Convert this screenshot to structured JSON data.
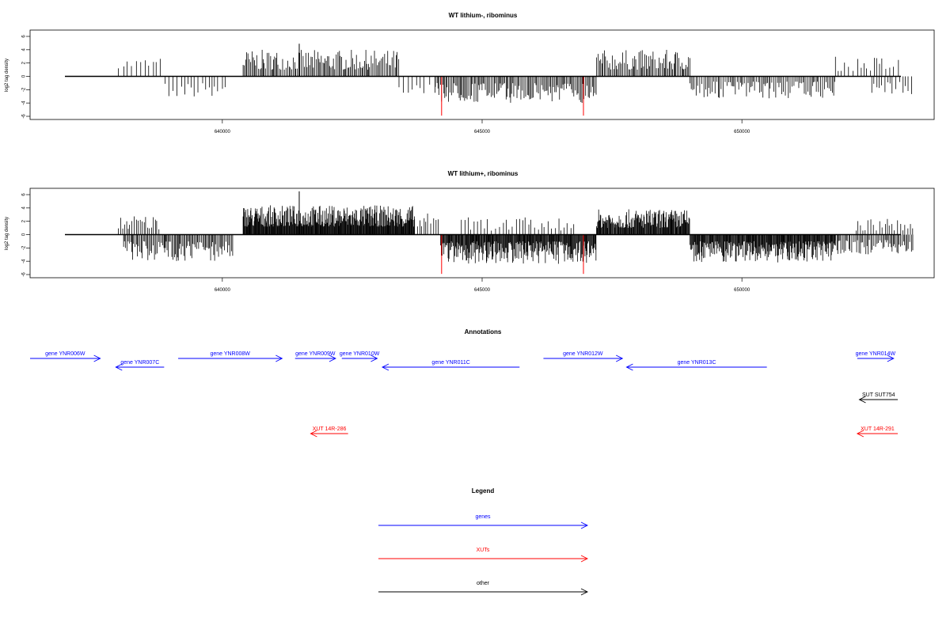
{
  "chart_data": [
    {
      "type": "bar",
      "title": "WT lithium-, ribominus",
      "ylabel": "log2 tag density",
      "xlabel": "",
      "ylim": [
        -6,
        7
      ],
      "xlim": [
        636300,
        653700
      ],
      "yticks": [
        6,
        4,
        2,
        0,
        -2,
        -4,
        -6
      ],
      "xticks": [
        640000,
        645000,
        650000
      ],
      "xtick_labels": [
        "640000",
        "645000",
        "650000"
      ],
      "series": [
        {
          "segments": [
            {
              "from": 638000,
              "to": 638900,
              "sign": 1,
              "step": 80,
              "base": 1.2,
              "amp": 1.6
            },
            {
              "from": 638900,
              "to": 640100,
              "sign": -1,
              "step": 70,
              "base": 1.0,
              "amp": 2.2
            },
            {
              "from": 640400,
              "to": 643400,
              "sign": 1,
              "step": 25,
              "base": 1.0,
              "amp": 3.0
            },
            {
              "from": 643400,
              "to": 644100,
              "sign": -1,
              "step": 90,
              "base": 0.8,
              "amp": 2.0
            },
            {
              "from": 644100,
              "to": 647200,
              "sign": -1,
              "step": 25,
              "base": 1.0,
              "amp": 3.0
            },
            {
              "from": 647200,
              "to": 649000,
              "sign": 1,
              "step": 25,
              "base": 1.0,
              "amp": 3.0
            },
            {
              "from": 649000,
              "to": 651800,
              "sign": -1,
              "step": 30,
              "base": 0.8,
              "amp": 2.6
            },
            {
              "from": 651800,
              "to": 653100,
              "sign": 1,
              "step": 70,
              "base": 0.8,
              "amp": 2.2
            },
            {
              "from": 652500,
              "to": 653300,
              "sign": -1,
              "step": 60,
              "base": 0.8,
              "amp": 2.0
            }
          ],
          "highlights": [
            {
              "x": 644220,
              "value": -5.9,
              "color": "#ff0000"
            },
            {
              "x": 646950,
              "value": -5.9,
              "color": "#ff0000"
            },
            {
              "x": 641480,
              "value": 4.9,
              "color": "#000000"
            }
          ]
        }
      ]
    },
    {
      "type": "bar",
      "title": "WT lithium+, ribominus",
      "ylabel": "log2 tag density",
      "xlabel": "",
      "ylim": [
        -6,
        7
      ],
      "xlim": [
        636300,
        653700
      ],
      "yticks": [
        6,
        4,
        2,
        0,
        -2,
        -4,
        -6
      ],
      "xticks": [
        640000,
        645000,
        650000
      ],
      "xtick_labels": [
        "640000",
        "645000",
        "650000"
      ],
      "series": [
        {
          "segments": [
            {
              "from": 638000,
              "to": 638800,
              "sign": 1,
              "step": 35,
              "base": 0.8,
              "amp": 2.2
            },
            {
              "from": 638100,
              "to": 640200,
              "sign": -1,
              "step": 22,
              "base": 1.0,
              "amp": 3.0
            },
            {
              "from": 640400,
              "to": 643700,
              "sign": 1,
              "step": 10,
              "base": 1.2,
              "amp": 3.2
            },
            {
              "from": 643700,
              "to": 644200,
              "sign": 1,
              "step": 45,
              "base": 0.8,
              "amp": 2.4
            },
            {
              "from": 644200,
              "to": 647200,
              "sign": -1,
              "step": 12,
              "base": 1.0,
              "amp": 3.4
            },
            {
              "from": 644600,
              "to": 646800,
              "sign": 1,
              "step": 60,
              "base": 0.6,
              "amp": 2.0
            },
            {
              "from": 647200,
              "to": 649000,
              "sign": 1,
              "step": 12,
              "base": 1.0,
              "amp": 2.8
            },
            {
              "from": 649000,
              "to": 651800,
              "sign": -1,
              "step": 12,
              "base": 1.0,
              "amp": 3.2
            },
            {
              "from": 651800,
              "to": 653300,
              "sign": -1,
              "step": 25,
              "base": 0.8,
              "amp": 2.2
            },
            {
              "from": 652200,
              "to": 653300,
              "sign": 1,
              "step": 50,
              "base": 0.6,
              "amp": 1.8
            }
          ],
          "highlights": [
            {
              "x": 644220,
              "value": -5.9,
              "color": "#ff0000"
            },
            {
              "x": 646950,
              "value": -5.9,
              "color": "#ff0000"
            },
            {
              "x": 641480,
              "value": 6.5,
              "color": "#000000"
            }
          ]
        }
      ]
    }
  ],
  "annotations": {
    "title": "Annotations",
    "items": [
      {
        "label": "gene YNR006W",
        "from": 636300,
        "to": 637650,
        "dir": "right",
        "row": 0,
        "color": "#0000ff"
      },
      {
        "label": "gene YNR007C",
        "from": 637950,
        "to": 638880,
        "dir": "left",
        "row": 1,
        "color": "#0000ff"
      },
      {
        "label": "gene YNR008W",
        "from": 639150,
        "to": 641150,
        "dir": "right",
        "row": 0,
        "color": "#0000ff"
      },
      {
        "label": "gene YNR009W",
        "from": 641400,
        "to": 642180,
        "dir": "right",
        "row": 0,
        "color": "#0000ff"
      },
      {
        "label": "gene YNR010W",
        "from": 642300,
        "to": 642980,
        "dir": "right",
        "row": 0,
        "color": "#0000ff"
      },
      {
        "label": "gene YNR011C",
        "from": 643080,
        "to": 645720,
        "dir": "left",
        "row": 1,
        "color": "#0000ff"
      },
      {
        "label": "gene YNR012W",
        "from": 646180,
        "to": 647700,
        "dir": "right",
        "row": 0,
        "color": "#0000ff"
      },
      {
        "label": "gene YNR013C",
        "from": 647780,
        "to": 650480,
        "dir": "left",
        "row": 1,
        "color": "#0000ff"
      },
      {
        "label": "gene YNR014W",
        "from": 652220,
        "to": 652920,
        "dir": "right",
        "row": 0,
        "color": "#0000ff"
      },
      {
        "label": "SUT SUT754",
        "from": 652260,
        "to": 653000,
        "dir": "left",
        "row": 2,
        "color": "#000000"
      },
      {
        "label": "XUT 14R-286",
        "from": 641700,
        "to": 642420,
        "dir": "left",
        "row": 3,
        "color": "#ff0000"
      },
      {
        "label": "XUT 14R-291",
        "from": 652220,
        "to": 653000,
        "dir": "left",
        "row": 3,
        "color": "#ff0000"
      }
    ]
  },
  "legend": {
    "title": "Legend",
    "items": [
      {
        "label": "genes",
        "color": "#0000ff"
      },
      {
        "label": "XUTs",
        "color": "#ff0000"
      },
      {
        "label": "other",
        "color": "#000000"
      }
    ]
  }
}
